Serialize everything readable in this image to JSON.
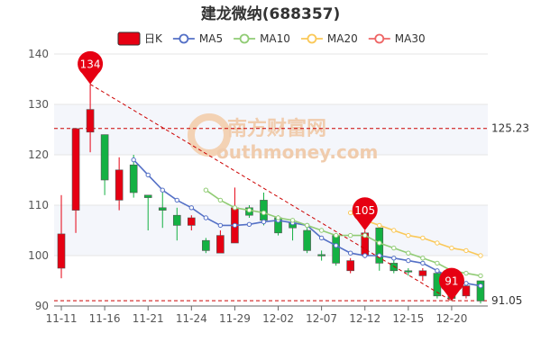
{
  "chart_data": {
    "type": "candlestick",
    "title": "建龙微纳(688357)",
    "legend": {
      "placement": "top-center",
      "items": [
        {
          "name": "日K",
          "color": "#e60012",
          "kind": "candle"
        },
        {
          "name": "MA5",
          "color": "#5470c6",
          "kind": "line"
        },
        {
          "name": "MA10",
          "color": "#91cc75",
          "kind": "line"
        },
        {
          "name": "MA20",
          "color": "#fac858",
          "kind": "line"
        },
        {
          "name": "MA30",
          "color": "#ee6666",
          "kind": "line"
        }
      ]
    },
    "ylim": [
      90,
      140
    ],
    "yticks": [
      90,
      100,
      110,
      120,
      130,
      140
    ],
    "xtick_labels": [
      "11-11",
      "11-16",
      "11-21",
      "11-24",
      "11-29",
      "12-02",
      "12-07",
      "12-12",
      "12-15",
      "12-20"
    ],
    "xtick_indices": [
      0,
      3,
      6,
      9,
      12,
      15,
      18,
      21,
      24,
      27
    ],
    "colors": {
      "up": "#e60012",
      "down": "#14b143",
      "grid_band": "#f4f6fb",
      "ref_line": "#cc0000"
    },
    "candles": [
      {
        "date": "11-11",
        "open": 97.5,
        "close": 104.3,
        "low": 95.5,
        "high": 112.0
      },
      {
        "date": "11-14",
        "open": 109.0,
        "close": 125.2,
        "low": 104.5,
        "high": 125.2
      },
      {
        "date": "11-15",
        "open": 124.5,
        "close": 129.0,
        "low": 120.5,
        "high": 134.0
      },
      {
        "date": "11-16",
        "open": 124.0,
        "close": 115.0,
        "low": 112.0,
        "high": 124.0
      },
      {
        "date": "11-17",
        "open": 111.0,
        "close": 117.0,
        "low": 109.0,
        "high": 119.5
      },
      {
        "date": "11-18",
        "open": 118.0,
        "close": 112.5,
        "low": 111.5,
        "high": 120.0
      },
      {
        "date": "11-21",
        "open": 112.0,
        "close": 111.5,
        "low": 105.0,
        "high": 112.0
      },
      {
        "date": "11-22",
        "open": 109.5,
        "close": 109.0,
        "low": 105.5,
        "high": 112.5
      },
      {
        "date": "11-23",
        "open": 108.0,
        "close": 106.0,
        "low": 103.0,
        "high": 109.5
      },
      {
        "date": "11-24",
        "open": 106.0,
        "close": 107.5,
        "low": 105.0,
        "high": 108.0
      },
      {
        "date": "11-25",
        "open": 103.0,
        "close": 101.0,
        "low": 100.5,
        "high": 103.5
      },
      {
        "date": "11-28",
        "open": 100.5,
        "close": 104.0,
        "low": 100.5,
        "high": 105.0
      },
      {
        "date": "11-29",
        "open": 102.5,
        "close": 109.5,
        "low": 102.5,
        "high": 113.5
      },
      {
        "date": "11-30",
        "open": 109.5,
        "close": 108.0,
        "low": 107.5,
        "high": 110.0
      },
      {
        "date": "12-01",
        "open": 111.0,
        "close": 107.0,
        "low": 106.0,
        "high": 112.5
      },
      {
        "date": "12-02",
        "open": 107.5,
        "close": 104.5,
        "low": 104.0,
        "high": 108.0
      },
      {
        "date": "12-05",
        "open": 106.5,
        "close": 105.5,
        "low": 103.0,
        "high": 107.0
      },
      {
        "date": "12-06",
        "open": 105.0,
        "close": 101.0,
        "low": 100.5,
        "high": 105.5
      },
      {
        "date": "12-07",
        "open": 100.2,
        "close": 100.0,
        "low": 99.0,
        "high": 101.0
      },
      {
        "date": "12-08",
        "open": 104.0,
        "close": 98.5,
        "low": 98.0,
        "high": 104.0
      },
      {
        "date": "12-09",
        "open": 97.0,
        "close": 99.0,
        "low": 96.5,
        "high": 99.5
      },
      {
        "date": "12-12",
        "open": 100.0,
        "close": 104.5,
        "low": 99.5,
        "high": 105.0
      },
      {
        "date": "12-13",
        "open": 105.5,
        "close": 98.5,
        "low": 97.0,
        "high": 105.5
      },
      {
        "date": "12-14",
        "open": 98.5,
        "close": 97.0,
        "low": 96.5,
        "high": 99.0
      },
      {
        "date": "12-15",
        "open": 97.0,
        "close": 96.8,
        "low": 96.0,
        "high": 97.5
      },
      {
        "date": "12-16",
        "open": 96.0,
        "close": 97.0,
        "low": 95.0,
        "high": 97.5
      },
      {
        "date": "12-19",
        "open": 96.5,
        "close": 92.0,
        "low": 91.5,
        "high": 96.5
      },
      {
        "date": "12-20",
        "open": 94.5,
        "close": 91.5,
        "low": 91.0,
        "high": 95.0
      },
      {
        "date": "12-21",
        "open": 92.0,
        "close": 94.0,
        "low": 91.5,
        "high": 94.5
      },
      {
        "date": "12-22",
        "open": 95.0,
        "close": 91.0,
        "low": 90.5,
        "high": 95.0
      }
    ],
    "moving_averages": [
      {
        "name": "MA5",
        "color": "#5470c6",
        "start": 5,
        "values": [
          119.0,
          116.0,
          113.0,
          111.0,
          109.5,
          107.5,
          106.0,
          106.0,
          106.2,
          106.7,
          107.0,
          106.5,
          106.0,
          103.5,
          102.0,
          100.5,
          100.0,
          100.0,
          99.5,
          99.0,
          98.5,
          97.0,
          95.5,
          94.5,
          94.0
        ]
      },
      {
        "name": "MA10",
        "color": "#91cc75",
        "start": 10,
        "values": [
          113.0,
          111.0,
          109.5,
          109.0,
          108.5,
          107.5,
          107.0,
          106.0,
          105.0,
          104.0,
          104.0,
          104.0,
          102.5,
          101.5,
          100.5,
          99.5,
          98.5,
          97.0,
          96.5,
          96.0
        ]
      },
      {
        "name": "MA20",
        "color": "#fac858",
        "start": 20,
        "values": [
          108.5,
          107.0,
          106.0,
          105.0,
          104.0,
          103.5,
          102.5,
          101.5,
          101.0,
          100.0
        ]
      }
    ],
    "annotations": [
      {
        "text": "134",
        "index": 2,
        "value": 134
      },
      {
        "text": "105",
        "index": 21,
        "value": 105
      },
      {
        "text": "91",
        "index": 27,
        "value": 91
      }
    ],
    "reference_lines": [
      {
        "value": 125.23,
        "label": "125.23"
      },
      {
        "value": 91.05,
        "label": "91.05"
      }
    ],
    "trend_line": {
      "from_index": 2,
      "from_value": 134,
      "to_index": 27,
      "to_value": 91
    }
  },
  "watermark": {
    "brand": "南方财富网",
    "site": "outhmoney.com",
    "color": "#f0ccad"
  }
}
